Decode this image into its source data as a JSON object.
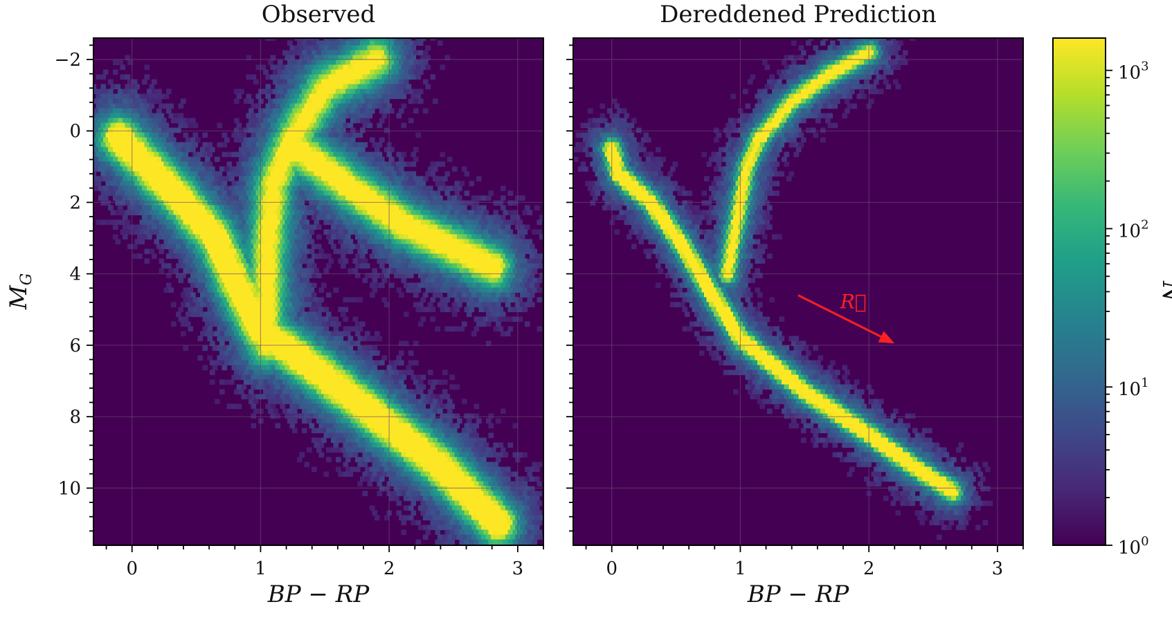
{
  "chart_data": [
    {
      "type": "heatmap",
      "subtype": "hexbin",
      "title": "Observed",
      "xlabel": "BP − RP",
      "ylabel": "M_G",
      "ylabel_main": "M",
      "ylabel_sub": "G",
      "xlim": [
        -0.3,
        3.2
      ],
      "ylim": [
        11.6,
        -2.6
      ],
      "y_inverted": true,
      "grid": true,
      "xticks": [
        0,
        1,
        2,
        3
      ],
      "xtick_labels": [
        "0",
        "1",
        "2",
        "3"
      ],
      "yticks": [
        -2,
        0,
        2,
        4,
        6,
        8,
        10
      ],
      "ytick_labels": [
        "−2",
        "0",
        "2",
        "4",
        "6",
        "8",
        "10"
      ],
      "density_ridges": [
        {
          "name": "main sequence",
          "points": [
            [
              -0.1,
              0.2
            ],
            [
              0.35,
              1.8
            ],
            [
              0.65,
              3.0
            ],
            [
              0.8,
              4.2
            ],
            [
              1.0,
              5.6
            ],
            [
              1.4,
              6.6
            ],
            [
              1.9,
              8.0
            ],
            [
              2.4,
              9.4
            ],
            [
              2.85,
              11.0
            ]
          ],
          "peak": 3.2
        },
        {
          "name": "red giant branch",
          "points": [
            [
              1.05,
              6.0
            ],
            [
              1.05,
              3.5
            ],
            [
              1.1,
              1.5
            ],
            [
              1.25,
              0.2
            ],
            [
              1.5,
              -1.2
            ],
            [
              1.9,
              -2.0
            ]
          ],
          "peak": 2.4
        },
        {
          "name": "red clump",
          "points": [
            [
              1.25,
              0.4
            ],
            [
              1.4,
              0.8
            ],
            [
              1.7,
              1.6
            ],
            [
              2.1,
              2.6
            ],
            [
              2.8,
              3.8
            ]
          ],
          "peak": 2.7
        }
      ]
    },
    {
      "type": "heatmap",
      "subtype": "hexbin",
      "title": "Dereddened Prediction",
      "xlabel": "BP − RP",
      "xlim": [
        -0.3,
        3.2
      ],
      "ylim": [
        11.6,
        -2.6
      ],
      "y_inverted": true,
      "grid": true,
      "xticks": [
        0,
        1,
        2,
        3
      ],
      "xtick_labels": [
        "0",
        "1",
        "2",
        "3"
      ],
      "yticks": [
        -2,
        0,
        2,
        4,
        6,
        8,
        10
      ],
      "density_ridges": [
        {
          "name": "main sequence",
          "points": [
            [
              0.0,
              0.5
            ],
            [
              0.05,
              1.2
            ],
            [
              0.3,
              2.0
            ],
            [
              0.55,
              3.2
            ],
            [
              0.75,
              4.4
            ],
            [
              1.0,
              5.8
            ],
            [
              1.5,
              7.3
            ],
            [
              2.0,
              8.5
            ],
            [
              2.35,
              9.4
            ],
            [
              2.65,
              10.1
            ]
          ],
          "peak": 3.3
        },
        {
          "name": "red giant branch",
          "points": [
            [
              0.9,
              4.0
            ],
            [
              1.0,
              2.0
            ],
            [
              1.05,
              1.0
            ],
            [
              1.15,
              0.2
            ],
            [
              1.4,
              -0.8
            ],
            [
              1.7,
              -1.6
            ],
            [
              2.0,
              -2.2
            ]
          ],
          "peak": 2.5
        },
        {
          "name": "red clump",
          "points": [
            [
              1.15,
              0.2
            ]
          ],
          "peak": 3.2
        }
      ],
      "annotation": {
        "label": "R⃗",
        "arrow_from": [
          1.45,
          4.6
        ],
        "arrow_to": [
          2.2,
          5.95
        ],
        "color": "#ff2020"
      }
    }
  ],
  "colorbar": {
    "label": "N",
    "scale": "log",
    "range": [
      1,
      1600
    ],
    "ticks": [
      1,
      10,
      100,
      1000
    ],
    "tick_bases": [
      "10",
      "10",
      "10",
      "10"
    ],
    "tick_exponents": [
      "0",
      "1",
      "2",
      "3"
    ],
    "colormap": "viridis",
    "colors": [
      "#440154",
      "#482878",
      "#3e4989",
      "#31688e",
      "#26828e",
      "#1f9e89",
      "#35b779",
      "#6ece58",
      "#b5de2b",
      "#fde725"
    ]
  },
  "style": {
    "background_color": "#440154",
    "grid_color": "#6a4a6e",
    "arrow_color": "#ff2020"
  }
}
